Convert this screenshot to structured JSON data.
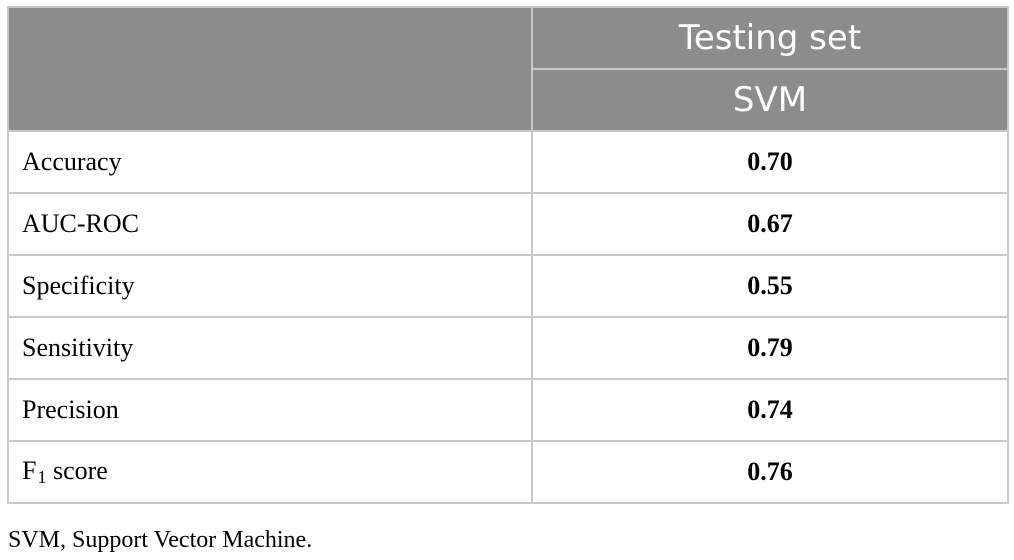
{
  "table": {
    "header": {
      "group_label": "Testing set",
      "model_label": "SVM"
    },
    "rows": [
      {
        "metric": "Accuracy",
        "value": "0.70"
      },
      {
        "metric": "AUC-ROC",
        "value": "0.67"
      },
      {
        "metric": "Specificity",
        "value": "0.55"
      },
      {
        "metric": "Sensitivity",
        "value": "0.79"
      },
      {
        "metric": "Precision",
        "value": "0.74"
      },
      {
        "metric_prefix": "F",
        "metric_subscript": "1",
        "metric_suffix": " score",
        "value": "0.76"
      }
    ]
  },
  "footnote": "SVM, Support Vector Machine.",
  "colors": {
    "header_background": "#8c8c8c",
    "header_text": "#ffffff",
    "grid_line": "#c8c8c8"
  }
}
